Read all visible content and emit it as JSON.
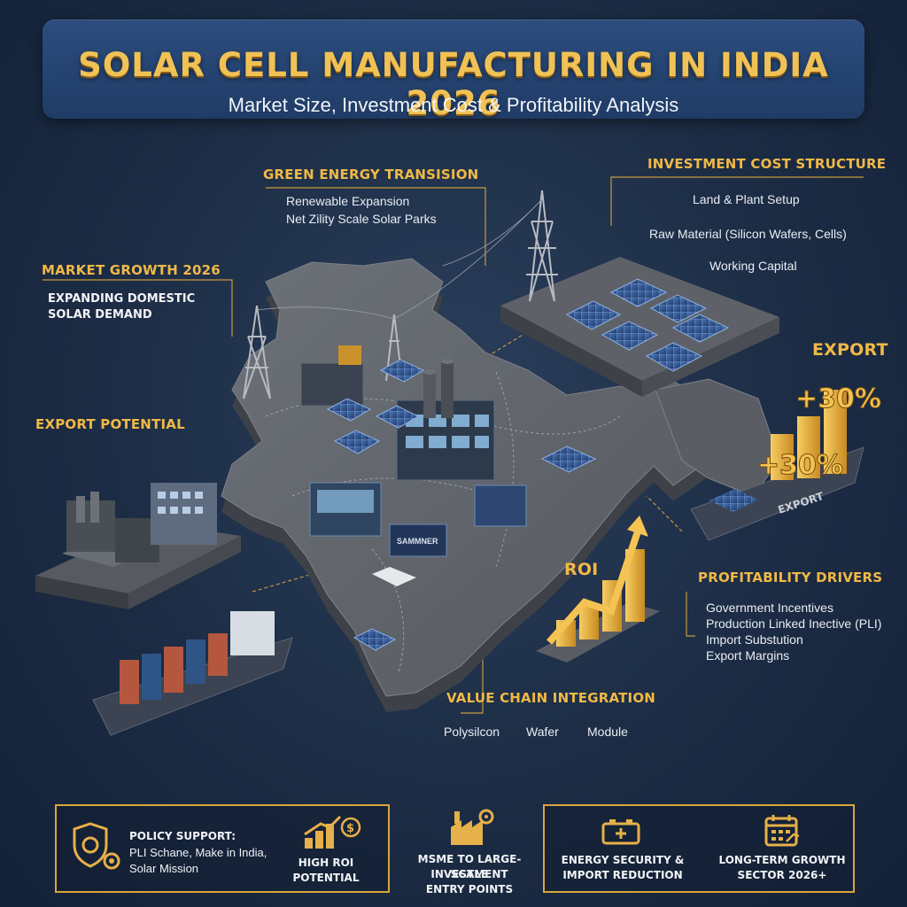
{
  "header": {
    "title": "SOLAR CELL MANUFACTURING IN INDIA 2026",
    "subtitle": "Market Size, Investment Cost & Profitability Analysis"
  },
  "green_energy": {
    "heading": "GREEN ENERGY TRANSISION",
    "lines": [
      "Renewable Expansion",
      "Net Zility Scale Solar Parks"
    ]
  },
  "investment": {
    "heading": "INVESTMENT COST STRUCTURE",
    "lines": [
      "Land & Plant Setup",
      "Raw Material (Silicon Wafers, Cells)",
      "Working Capital"
    ]
  },
  "market_growth": {
    "heading": "MARKET GROWTH 2026",
    "lines": [
      "EXPANDING DOMESTIC",
      "SOLAR DEMAND"
    ]
  },
  "export_potential": {
    "heading": "EXPORT POTENTIAL"
  },
  "export": {
    "heading": "EXPORT",
    "growth_labels": [
      "+30%",
      "+30%"
    ],
    "ship_label": "EXPORT"
  },
  "roi": {
    "label": "ROI"
  },
  "profitability": {
    "heading": "PROFITABILITY DRIVERS",
    "lines": [
      "Government Incentives",
      "Production Linked Inective (PLI)",
      "Import Substution",
      "Export Margins"
    ]
  },
  "value_chain": {
    "heading": "VALUE CHAIN INTEGRATION",
    "items": [
      "Polysilcon",
      "Wafer",
      "Module"
    ]
  },
  "factory_sign": "SAMMNER",
  "bottom": {
    "policy": {
      "title": "POLICY SUPPORT:",
      "line1": "PLI Schane, Make in India,",
      "line2": "Solar Mission"
    },
    "roi": {
      "line1": "HIGH ROI",
      "line2": "POTENTIAL"
    },
    "msme": {
      "line1": "MSME TO LARGE-SCALE",
      "line2": "INVESTMENT",
      "line3": "ENTRY POINTS"
    },
    "energy": {
      "line1": "ENERGY SECURITY &",
      "line2": "IMPORT REDUCTION"
    },
    "growth": {
      "line1": "LONG-TERM GROWTH",
      "line2": "SECTOR 2026+"
    }
  },
  "icons": [
    "shield-gear-icon",
    "rising-chart-dollar-icon",
    "factory-gear-icon",
    "battery-icon",
    "calendar-growth-icon"
  ],
  "colors": {
    "gold": "#f0b946",
    "navy": "#1c2c44",
    "banner": "#2c4d7f",
    "solar_panel": "#3a5f9a"
  }
}
